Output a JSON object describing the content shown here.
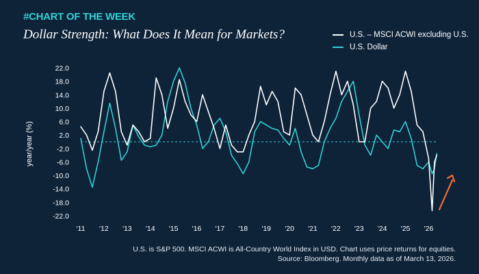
{
  "header": {
    "tag": "#CHART OF THE WEEK",
    "title": "Dollar Strength: What Does It Mean for Markets?"
  },
  "notes": {
    "line1": "U.S. is S&P 500. MSCI ACWI is All-Country World Index in USD. Chart uses price returns for equities.",
    "line2": "Source: Bloomberg. Monthly data as of March 13, 2026."
  },
  "colors": {
    "background": "#0e2238",
    "equity_series": "#ffffff",
    "dollar_series": "#31d1d4",
    "arrow": "#f26b32",
    "tag": "#31d1d4"
  },
  "chart_data": {
    "type": "line",
    "ylabel": "year/year (%)",
    "xlabel": "",
    "ylim": [
      -22,
      22
    ],
    "yticks": [
      22.0,
      18.0,
      14.0,
      10.0,
      6.0,
      2.0,
      -2.0,
      -6.0,
      -10.0,
      -14.0,
      -18.0,
      -22.0
    ],
    "ytick_labels": [
      "22.0",
      "18.0",
      "14.0",
      "10.0",
      "6.0",
      "2.0",
      "-2.0",
      "-6.0",
      "-10.0",
      "-14.0",
      "-18.0",
      "-22.0"
    ],
    "xlim": [
      2011,
      2026.4
    ],
    "xticks": [
      2011,
      2012,
      2013,
      2014,
      2015,
      2016,
      2017,
      2018,
      2019,
      2020,
      2021,
      2022,
      2023,
      2024,
      2025,
      2026
    ],
    "xtick_labels": [
      "'11",
      "'12",
      "'13",
      "'14",
      "'15",
      "'16",
      "'17",
      "'18",
      "'19",
      "'20",
      "'21",
      "'22",
      "'23",
      "'24",
      "'25",
      "'26"
    ],
    "reference_line": 0,
    "legend_position": "top-right",
    "series": [
      {
        "name": "U.S. – MSCI ACWI excluding U.S.",
        "color": "#ffffff",
        "points": [
          [
            2011.0,
            4.5
          ],
          [
            2011.25,
            2.0
          ],
          [
            2011.5,
            -2.5
          ],
          [
            2011.75,
            3.0
          ],
          [
            2012.0,
            15.0
          ],
          [
            2012.25,
            20.5
          ],
          [
            2012.5,
            15.0
          ],
          [
            2012.75,
            3.0
          ],
          [
            2013.0,
            -1.0
          ],
          [
            2013.25,
            5.0
          ],
          [
            2013.5,
            3.0
          ],
          [
            2013.75,
            0.0
          ],
          [
            2014.0,
            1.0
          ],
          [
            2014.25,
            19.0
          ],
          [
            2014.5,
            14.0
          ],
          [
            2014.75,
            4.0
          ],
          [
            2015.0,
            10.0
          ],
          [
            2015.25,
            18.5
          ],
          [
            2015.5,
            12.0
          ],
          [
            2015.75,
            8.0
          ],
          [
            2016.0,
            6.0
          ],
          [
            2016.25,
            14.0
          ],
          [
            2016.5,
            9.0
          ],
          [
            2016.75,
            4.0
          ],
          [
            2017.0,
            -2.0
          ],
          [
            2017.25,
            5.0
          ],
          [
            2017.5,
            -1.0
          ],
          [
            2017.75,
            -3.0
          ],
          [
            2018.0,
            -3.0
          ],
          [
            2018.25,
            2.0
          ],
          [
            2018.5,
            6.0
          ],
          [
            2018.75,
            16.5
          ],
          [
            2019.0,
            11.0
          ],
          [
            2019.25,
            15.0
          ],
          [
            2019.5,
            12.0
          ],
          [
            2019.75,
            3.0
          ],
          [
            2020.0,
            2.0
          ],
          [
            2020.25,
            16.0
          ],
          [
            2020.5,
            14.0
          ],
          [
            2020.75,
            8.0
          ],
          [
            2021.0,
            2.0
          ],
          [
            2021.25,
            0.0
          ],
          [
            2021.5,
            6.0
          ],
          [
            2021.75,
            14.0
          ],
          [
            2022.0,
            21.0
          ],
          [
            2022.25,
            14.0
          ],
          [
            2022.5,
            18.0
          ],
          [
            2022.75,
            11.0
          ],
          [
            2023.0,
            0.0
          ],
          [
            2023.25,
            0.0
          ],
          [
            2023.5,
            10.0
          ],
          [
            2023.75,
            12.0
          ],
          [
            2024.0,
            18.0
          ],
          [
            2024.25,
            16.0
          ],
          [
            2024.5,
            10.0
          ],
          [
            2024.75,
            14.0
          ],
          [
            2025.0,
            21.0
          ],
          [
            2025.25,
            15.0
          ],
          [
            2025.5,
            5.0
          ],
          [
            2025.75,
            3.0
          ],
          [
            2026.0,
            -5.0
          ],
          [
            2026.15,
            -20.5
          ],
          [
            2026.25,
            -6.0
          ],
          [
            2026.35,
            -4.0
          ]
        ]
      },
      {
        "name": "U.S. Dollar",
        "color": "#31d1d4",
        "points": [
          [
            2011.0,
            1.0
          ],
          [
            2011.25,
            -8.0
          ],
          [
            2011.5,
            -13.5
          ],
          [
            2011.75,
            -6.0
          ],
          [
            2012.0,
            3.0
          ],
          [
            2012.25,
            11.5
          ],
          [
            2012.5,
            4.0
          ],
          [
            2012.75,
            -5.5
          ],
          [
            2013.0,
            -3.0
          ],
          [
            2013.25,
            5.0
          ],
          [
            2013.5,
            1.5
          ],
          [
            2013.75,
            -1.0
          ],
          [
            2014.0,
            -1.5
          ],
          [
            2014.25,
            -1.0
          ],
          [
            2014.5,
            2.0
          ],
          [
            2014.75,
            12.0
          ],
          [
            2015.0,
            18.0
          ],
          [
            2015.25,
            22.0
          ],
          [
            2015.5,
            17.5
          ],
          [
            2015.75,
            10.0
          ],
          [
            2016.0,
            5.0
          ],
          [
            2016.25,
            -2.0
          ],
          [
            2016.5,
            0.0
          ],
          [
            2016.75,
            5.0
          ],
          [
            2017.0,
            7.0
          ],
          [
            2017.25,
            3.0
          ],
          [
            2017.5,
            -4.0
          ],
          [
            2017.75,
            -6.5
          ],
          [
            2018.0,
            -9.5
          ],
          [
            2018.25,
            -6.0
          ],
          [
            2018.5,
            3.0
          ],
          [
            2018.75,
            6.0
          ],
          [
            2019.0,
            5.0
          ],
          [
            2019.25,
            4.0
          ],
          [
            2019.5,
            3.5
          ],
          [
            2019.75,
            1.0
          ],
          [
            2020.0,
            -1.0
          ],
          [
            2020.25,
            4.0
          ],
          [
            2020.5,
            -3.0
          ],
          [
            2020.75,
            -7.5
          ],
          [
            2021.0,
            -8.0
          ],
          [
            2021.25,
            -7.0
          ],
          [
            2021.5,
            0.0
          ],
          [
            2021.75,
            4.0
          ],
          [
            2022.0,
            7.0
          ],
          [
            2022.25,
            12.0
          ],
          [
            2022.5,
            15.0
          ],
          [
            2022.75,
            18.0
          ],
          [
            2023.0,
            8.0
          ],
          [
            2023.25,
            -1.0
          ],
          [
            2023.5,
            -4.0
          ],
          [
            2023.75,
            2.0
          ],
          [
            2024.0,
            0.0
          ],
          [
            2024.25,
            -2.0
          ],
          [
            2024.5,
            3.5
          ],
          [
            2024.75,
            3.0
          ],
          [
            2025.0,
            6.0
          ],
          [
            2025.25,
            1.0
          ],
          [
            2025.5,
            -7.0
          ],
          [
            2025.75,
            -8.0
          ],
          [
            2026.0,
            -6.0
          ],
          [
            2026.15,
            -9.5
          ],
          [
            2026.25,
            -8.0
          ],
          [
            2026.35,
            -3.5
          ]
        ]
      }
    ]
  }
}
